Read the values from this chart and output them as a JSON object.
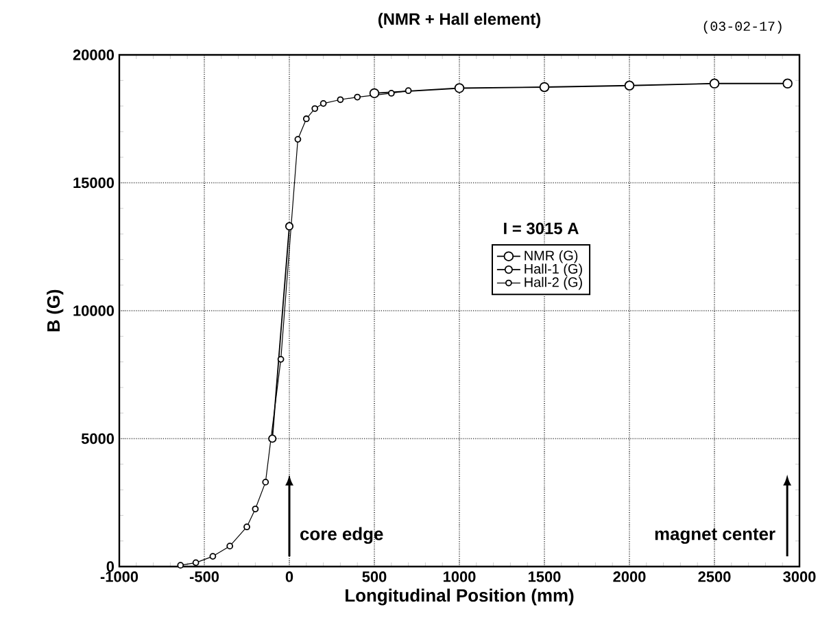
{
  "chart_data": {
    "type": "line",
    "title": "(NMR + Hall element)",
    "xlabel": "Longitudinal Position (mm)",
    "ylabel": "B  (G)",
    "legend_title": "I = 3015 A",
    "series": [
      {
        "name": "NMR  (G)",
        "color": "#000000",
        "x": [
          500,
          1000,
          1500,
          2000,
          2500,
          2930
        ],
        "values": [
          18500,
          18700,
          18740,
          18800,
          18880,
          18880
        ]
      },
      {
        "name": "Hall-1  (G)",
        "color": "#000000",
        "x": [
          -100,
          0
        ],
        "values": [
          5000,
          13300
        ]
      },
      {
        "name": "Hall-2  (G)",
        "color": "#000000",
        "x": [
          -640,
          -550,
          -450,
          -350,
          -250,
          -200,
          -140,
          -50,
          50,
          100,
          150,
          200,
          300,
          400,
          600,
          700
        ],
        "values": [
          50,
          150,
          400,
          800,
          1550,
          2250,
          3300,
          8100,
          16700,
          17500,
          17900,
          18100,
          18250,
          18350,
          18500,
          18600
        ]
      }
    ],
    "xlim": [
      -1000,
      3000
    ],
    "xticks": [
      -1000,
      -500,
      0,
      500,
      1000,
      1500,
      2000,
      2500,
      3000
    ],
    "ylim": [
      0,
      20000
    ],
    "yticks": [
      0,
      5000,
      10000,
      15000,
      20000
    ],
    "grid": true,
    "legend": "right",
    "marker": "circle",
    "line_style": "solid",
    "annotations": [
      "(03-02-17)",
      "core edge",
      "magnet center"
    ]
  }
}
